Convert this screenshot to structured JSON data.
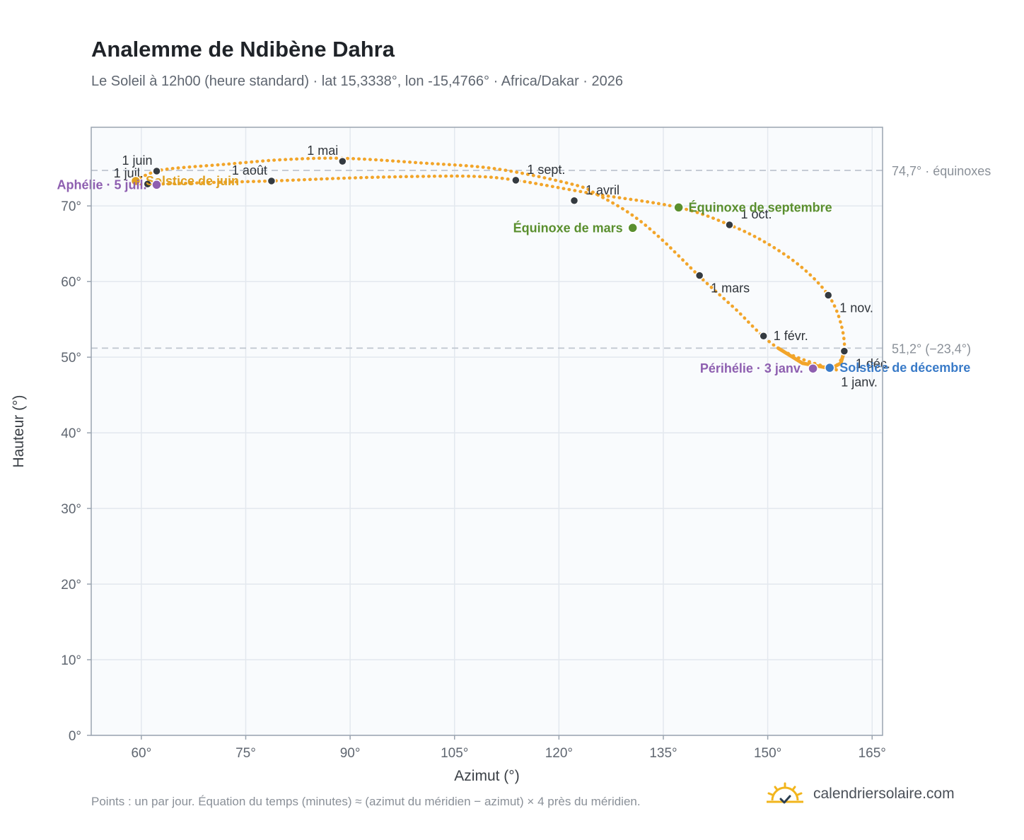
{
  "title": "Analemme de Ndibène Dahra",
  "subtitle": "Le Soleil à 12h00 (heure standard) · lat 15,3338°, lon -15,4766° · Africa/Dakar · 2026",
  "footer_note": "Points : un par jour. Équation du temps (minutes) ≈ (azimut du méridien − azimut) × 4 près du méridien.",
  "brand": "calendriersolaire.com",
  "colors": {
    "curve": "#f2a52a",
    "month_marker": "#343a40",
    "equinox": "#5a8f2e",
    "june_solstice": "#e0a020",
    "december_solstice": "#3a7bc8",
    "apsis": "#8e5fb0",
    "plot_bg": "#f9fbfd",
    "grid": "#e3e8ee",
    "reference_line": "#bfc6cf"
  },
  "chart_data": {
    "type": "scatter",
    "xlabel": "Azimut (°)",
    "ylabel": "Hauteur (°)",
    "xlim": [
      52.8,
      166.5
    ],
    "ylim": [
      0,
      80.4
    ],
    "x_ticks": [
      {
        "value": 60,
        "label": "60°"
      },
      {
        "value": 75,
        "label": "75°"
      },
      {
        "value": 90,
        "label": "90°"
      },
      {
        "value": 105,
        "label": "105°"
      },
      {
        "value": 120,
        "label": "120°"
      },
      {
        "value": 135,
        "label": "135°"
      },
      {
        "value": 150,
        "label": "150°"
      },
      {
        "value": 165,
        "label": "165°"
      }
    ],
    "y_ticks": [
      {
        "value": 0,
        "label": "0°"
      },
      {
        "value": 10,
        "label": "10°"
      },
      {
        "value": 20,
        "label": "20°"
      },
      {
        "value": 30,
        "label": "30°"
      },
      {
        "value": 40,
        "label": "40°"
      },
      {
        "value": 50,
        "label": "50°"
      },
      {
        "value": 60,
        "label": "60°"
      },
      {
        "value": 70,
        "label": "70°"
      }
    ],
    "grid": true,
    "reference_lines": [
      {
        "y": 74.7,
        "label": "74,7° · équinoxes"
      },
      {
        "y": 51.2,
        "label": "51,2° (−23,4°)"
      }
    ],
    "series": [
      {
        "points": [
          [
            159.1,
            48.5
          ],
          [
            151.5,
            51.2
          ],
          [
            145.2,
            56.5
          ],
          [
            140.3,
            60.6
          ],
          [
            134.5,
            65.8
          ],
          [
            130.2,
            69.0
          ],
          [
            125.5,
            71.5
          ],
          [
            122.2,
            72.8
          ],
          [
            111.0,
            74.9
          ],
          [
            100.0,
            75.7
          ],
          [
            88.9,
            76.3
          ],
          [
            80.0,
            76.1
          ],
          [
            72.0,
            75.5
          ],
          [
            65.0,
            75.0
          ],
          [
            62.2,
            74.6
          ],
          [
            60.0,
            73.8
          ],
          [
            59.2,
            73.3
          ],
          [
            60.0,
            72.9
          ],
          [
            61.0,
            72.9
          ],
          [
            63.0,
            72.9
          ],
          [
            70.0,
            73.1
          ],
          [
            78.7,
            73.3
          ],
          [
            90.0,
            73.7
          ],
          [
            100.0,
            73.9
          ],
          [
            108.0,
            73.9
          ],
          [
            113.8,
            73.4
          ],
          [
            125.0,
            71.6
          ],
          [
            137.2,
            69.8
          ],
          [
            144.5,
            67.5
          ],
          [
            150.0,
            65.0
          ],
          [
            155.0,
            61.8
          ],
          [
            158.7,
            58.2
          ],
          [
            160.5,
            54.5
          ],
          [
            161.0,
            50.8
          ],
          [
            159.8,
            48.8
          ],
          [
            159.1,
            48.5
          ]
        ]
      }
    ],
    "month_markers": [
      {
        "label": "1 janv.",
        "x": 158.9,
        "y": 48.4,
        "label_pos": "below-right"
      },
      {
        "label": "1 févr.",
        "x": 149.4,
        "y": 52.8,
        "label_pos": "right"
      },
      {
        "label": "1 mars",
        "x": 140.2,
        "y": 60.8,
        "label_pos": "below-right"
      },
      {
        "label": "1 avril",
        "x": 122.2,
        "y": 70.7,
        "label_pos": "above-right"
      },
      {
        "label": "1 mai",
        "x": 88.9,
        "y": 75.9,
        "label_pos": "above-left"
      },
      {
        "label": "1 juin",
        "x": 62.2,
        "y": 74.6,
        "label_pos": "above-left"
      },
      {
        "label": "1 juil.",
        "x": 60.9,
        "y": 72.9,
        "label_pos": "above-left"
      },
      {
        "label": "1 août",
        "x": 78.7,
        "y": 73.3,
        "label_pos": "above-left"
      },
      {
        "label": "1 sept.",
        "x": 113.8,
        "y": 73.4,
        "label_pos": "above-right"
      },
      {
        "label": "1 oct.",
        "x": 144.5,
        "y": 67.5,
        "label_pos": "above-right"
      },
      {
        "label": "1 nov.",
        "x": 158.7,
        "y": 58.2,
        "label_pos": "below-right"
      },
      {
        "label": "1 déc.",
        "x": 161.0,
        "y": 50.8,
        "label_pos": "below-right"
      }
    ],
    "events": [
      {
        "label": "Solstice de juin",
        "x": 59.2,
        "y": 73.3,
        "color_key": "june_solstice",
        "label_pos": "right"
      },
      {
        "label": "Aphélie · 5 juil.",
        "x": 62.2,
        "y": 72.8,
        "color_key": "apsis",
        "label_pos": "left"
      },
      {
        "label": "Équinoxe de septembre",
        "x": 137.2,
        "y": 69.8,
        "color_key": "equinox",
        "label_pos": "right"
      },
      {
        "label": "Équinoxe de mars",
        "x": 130.6,
        "y": 67.1,
        "color_key": "equinox",
        "label_pos": "left"
      },
      {
        "label": "Périhélie · 3 janv.",
        "x": 156.5,
        "y": 48.5,
        "color_key": "apsis",
        "label_pos": "left"
      },
      {
        "label": "Solstice de décembre",
        "x": 158.9,
        "y": 48.6,
        "color_key": "december_solstice",
        "label_pos": "right"
      }
    ]
  }
}
